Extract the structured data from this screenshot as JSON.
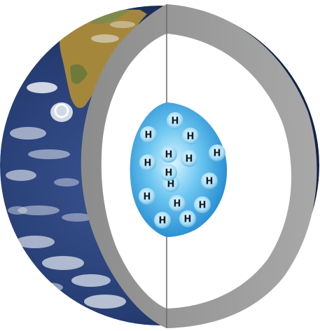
{
  "diagram": {
    "core": {
      "element_symbol": "H",
      "atom_count": 15
    },
    "colors": {
      "ocean": "#24386a",
      "land": "#a88a3e",
      "clouds": "#eef2f7",
      "mantle_shell": "#9a9a9a",
      "interior": "#ffffff",
      "core_light": "#cfeefc",
      "core_dark": "#1f8fd6",
      "atom_text": "#0d1a2a"
    }
  }
}
